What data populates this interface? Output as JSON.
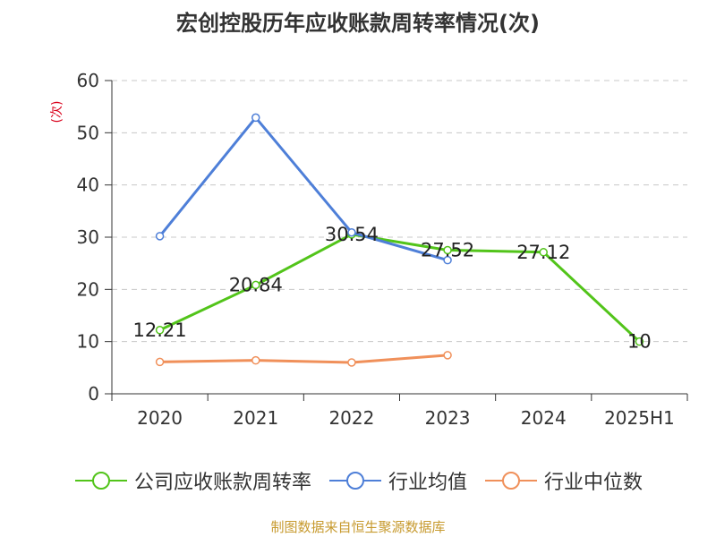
{
  "chart_data": {
    "type": "line",
    "title": "宏创控股历年应收账款周转率情况(次)",
    "ylabel": "(次)",
    "xlabel": "",
    "categories": [
      "2020",
      "2021",
      "2022",
      "2023",
      "2024",
      "2025H1"
    ],
    "ylim": [
      0,
      60
    ],
    "yticks": [
      0,
      10,
      20,
      30,
      40,
      50,
      60
    ],
    "grid": "horizontal-dashed",
    "legend_position": "bottom",
    "series": [
      {
        "name": "公司应收账款周转率",
        "color": "#52c41a",
        "values": [
          12.21,
          20.84,
          30.54,
          27.52,
          27.12,
          10
        ],
        "labels": [
          "12.21",
          "20.84",
          "30.54",
          "27.52",
          "27.12",
          "10"
        ]
      },
      {
        "name": "行业均值",
        "color": "#4e7fd8",
        "values": [
          30.2,
          52.9,
          30.9,
          25.6,
          null,
          null
        ]
      },
      {
        "name": "行业中位数",
        "color": "#f0905a",
        "values": [
          6.1,
          6.4,
          6.0,
          7.4,
          null,
          null
        ]
      }
    ]
  },
  "footer": {
    "source": "制图数据来自恒生聚源数据库"
  },
  "colors": {
    "axis": "#333333",
    "grid": "#c8c8c8",
    "ylabel": "#d9001b",
    "source": "#c79a2e"
  }
}
